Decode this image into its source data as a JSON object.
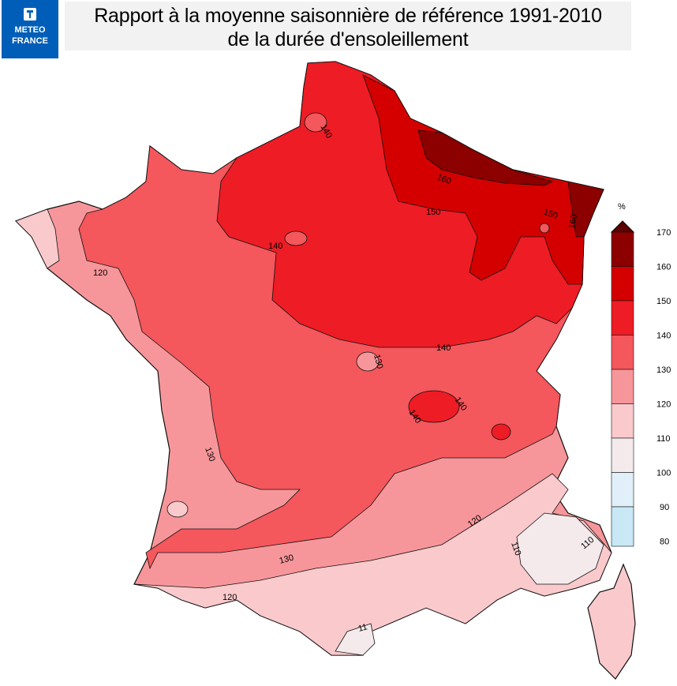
{
  "header": {
    "title_line1": "Rapport à la moyenne saisonnière de référence 1991-2010",
    "title_line2": "de la durée d'ensoleillement"
  },
  "logo": {
    "line1": "METEO",
    "line2": "FRANCE"
  },
  "legend": {
    "unit": "%",
    "ticks": [
      "170",
      "160",
      "150",
      "140",
      "130",
      "120",
      "110",
      "100",
      "90",
      "80"
    ],
    "colors": {
      "c160_170": "#8c0000",
      "c150_160": "#d40000",
      "c140_150": "#ee1c24",
      "c130_140": "#f4575c",
      "c120_130": "#f7969a",
      "c110_120": "#f9c9cc",
      "c100_110": "#f4eaec",
      "c90_100": "#e1eff8",
      "c80_90": "#c8e8f6"
    }
  },
  "contour_labels": {
    "l140_nw": "140",
    "l140_coast": "140",
    "l150": "150",
    "l150_e": "150",
    "l160": "160",
    "l160_e": "160",
    "l140_c": "140",
    "l130_c": "130",
    "l140_i1": "140",
    "l140_i2": "140",
    "l120_w": "120",
    "l130_w": "130",
    "l130_s": "130",
    "l120_s": "120",
    "l120_se": "120",
    "l110_se": "110",
    "l110_e": "110",
    "l11_s": "11"
  }
}
